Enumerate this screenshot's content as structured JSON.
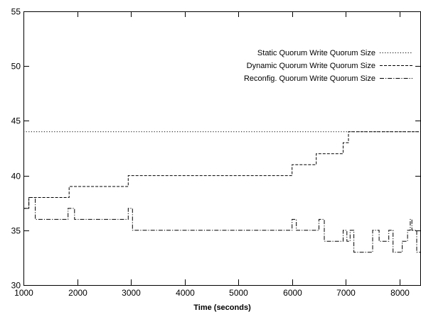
{
  "chart_data": {
    "type": "line",
    "title": "",
    "xlabel": "Time (seconds)",
    "ylabel": "",
    "xlim": [
      1000,
      8400
    ],
    "ylim": [
      30,
      55
    ],
    "xticks": [
      1000,
      2000,
      3000,
      4000,
      5000,
      6000,
      7000,
      8000
    ],
    "yticks": [
      30,
      35,
      40,
      45,
      50,
      55
    ],
    "grid": false,
    "legend_position": "top-right",
    "series": [
      {
        "name": "Static Quorum Write Quorum Size",
        "style": "dotted",
        "color": "#000000",
        "step": true,
        "points": [
          [
            1000,
            44
          ],
          [
            8400,
            44
          ]
        ]
      },
      {
        "name": "Dynamic Quorum Write Quorum Size",
        "style": "dashed",
        "color": "#000000",
        "step": true,
        "points": [
          [
            1000,
            37
          ],
          [
            1100,
            38
          ],
          [
            1850,
            39
          ],
          [
            2950,
            40
          ],
          [
            6000,
            41
          ],
          [
            6450,
            42
          ],
          [
            6950,
            43
          ],
          [
            7050,
            44
          ],
          [
            8400,
            44
          ]
        ]
      },
      {
        "name": "Reconfig. Quorum Write Quorum Size",
        "style": "dashdot",
        "color": "#000000",
        "step": true,
        "points": [
          [
            1000,
            37
          ],
          [
            1100,
            38
          ],
          [
            1220,
            36
          ],
          [
            1830,
            37
          ],
          [
            1950,
            36
          ],
          [
            2950,
            37
          ],
          [
            3030,
            35
          ],
          [
            6000,
            36
          ],
          [
            6080,
            35
          ],
          [
            6500,
            36
          ],
          [
            6600,
            34
          ],
          [
            6950,
            35
          ],
          [
            7020,
            34
          ],
          [
            7080,
            35
          ],
          [
            7150,
            33
          ],
          [
            7500,
            35
          ],
          [
            7620,
            34
          ],
          [
            7800,
            35
          ],
          [
            7880,
            33
          ],
          [
            8050,
            34
          ],
          [
            8150,
            35
          ],
          [
            8200,
            36
          ],
          [
            8230,
            35
          ],
          [
            8320,
            33
          ],
          [
            8400,
            33
          ]
        ]
      }
    ]
  }
}
